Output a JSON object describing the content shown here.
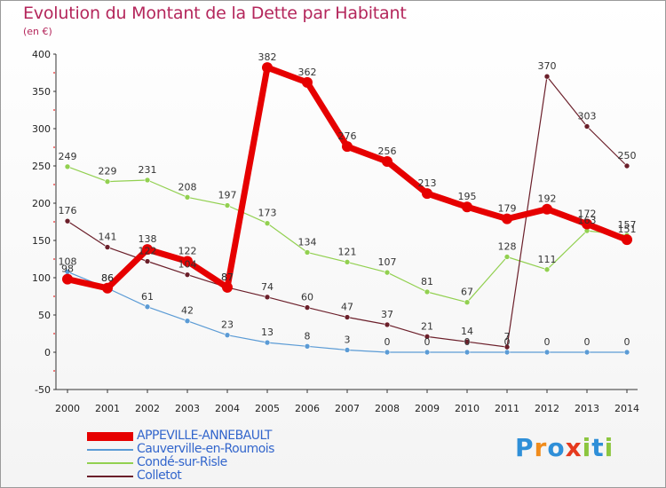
{
  "header": {
    "title": "Evolution du Montant de la Dette par Habitant",
    "unit": "(en €)"
  },
  "brand": {
    "name": "Proxiti",
    "letters": [
      "P",
      "r",
      "o",
      "x",
      "i",
      "t",
      "i"
    ],
    "colors": [
      "#2f8fd8",
      "#f08c1c",
      "#2f8fd8",
      "#e63a1e",
      "#8cc63f",
      "#2f8fd8",
      "#8cc63f"
    ]
  },
  "chart_data": {
    "type": "line",
    "x": [
      "2000",
      "2001",
      "2002",
      "2003",
      "2004",
      "2005",
      "2006",
      "2007",
      "2008",
      "2009",
      "2010",
      "2011",
      "2012",
      "2013",
      "2014"
    ],
    "ylim": [
      -50,
      400
    ],
    "yticks": [
      -50,
      0,
      50,
      100,
      150,
      200,
      250,
      300,
      350,
      400
    ],
    "grid": false,
    "legend_position": "bottom-left",
    "series": [
      {
        "name": "APPEVILLE-ANNEBAULT",
        "color": "#e60000",
        "values": [
          98,
          86,
          138,
          122,
          87,
          382,
          362,
          276,
          256,
          213,
          195,
          179,
          192,
          172,
          151
        ]
      },
      {
        "name": "Cauverville-en-Roumois",
        "color": "#5b9bd5",
        "values": [
          108,
          86,
          61,
          42,
          23,
          13,
          8,
          3,
          0,
          0,
          0,
          0,
          0,
          0,
          0
        ]
      },
      {
        "name": "Condé-sur-Risle",
        "color": "#92d050",
        "values": [
          249,
          229,
          231,
          208,
          197,
          173,
          134,
          121,
          107,
          81,
          67,
          128,
          111,
          163,
          157
        ]
      },
      {
        "name": "Colletot",
        "color": "#6b1f2a",
        "values": [
          176,
          141,
          122,
          104,
          87,
          74,
          60,
          47,
          37,
          21,
          14,
          7,
          370,
          303,
          250
        ]
      }
    ]
  }
}
